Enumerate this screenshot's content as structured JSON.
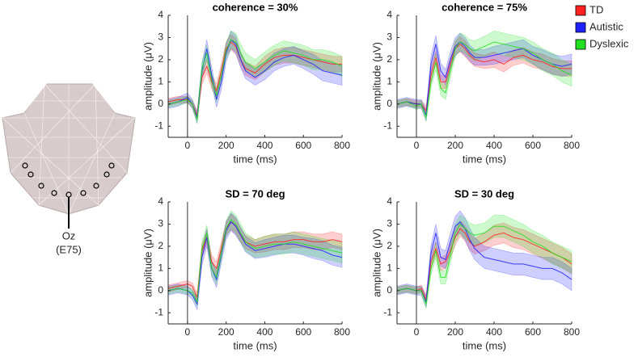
{
  "diagram": {
    "electrode_label": "Oz",
    "electrode_id": "(E75)"
  },
  "chart_data": [
    {
      "type": "line",
      "title": "coherence = 30%",
      "xlabel": "time (ms)",
      "ylabel": "amplitude (μV)",
      "xlim": [
        -100,
        800
      ],
      "ylim": [
        -1.5,
        4
      ],
      "xticks": [
        0,
        200,
        400,
        600,
        800
      ],
      "yticks": [
        -1,
        0,
        1,
        2,
        3,
        4
      ],
      "vline": 0,
      "x": [
        -100,
        -50,
        0,
        25,
        50,
        75,
        100,
        125,
        150,
        175,
        200,
        225,
        250,
        275,
        300,
        350,
        400,
        450,
        500,
        550,
        600,
        650,
        700,
        750,
        800
      ],
      "series": [
        {
          "name": "TD",
          "color": "#ff2020",
          "values": [
            0.1,
            0.2,
            0.2,
            0,
            -0.5,
            1.2,
            1.7,
            1.0,
            0.6,
            1.5,
            2.5,
            2.8,
            2.6,
            2.0,
            1.6,
            1.4,
            1.8,
            2.1,
            2.2,
            2.2,
            2.1,
            2.0,
            1.9,
            1.8,
            1.8
          ],
          "errors": [
            0.15,
            0.15,
            0.15,
            0.15,
            0.2,
            0.3,
            0.3,
            0.3,
            0.3,
            0.3,
            0.3,
            0.35,
            0.35,
            0.3,
            0.3,
            0.3,
            0.35,
            0.35,
            0.35,
            0.35,
            0.35,
            0.35,
            0.35,
            0.35,
            0.35
          ]
        },
        {
          "name": "Autistic",
          "color": "#2020ff",
          "values": [
            0,
            0.1,
            0.3,
            0,
            -0.6,
            1.5,
            2.5,
            1.3,
            0.2,
            1.0,
            2.3,
            2.9,
            2.7,
            2.0,
            1.5,
            1.2,
            1.5,
            1.9,
            2.1,
            2.2,
            2.0,
            1.8,
            1.5,
            1.4,
            1.3
          ],
          "errors": [
            0.2,
            0.2,
            0.2,
            0.2,
            0.25,
            0.35,
            0.4,
            0.35,
            0.35,
            0.35,
            0.4,
            0.4,
            0.4,
            0.35,
            0.35,
            0.35,
            0.4,
            0.4,
            0.4,
            0.4,
            0.4,
            0.45,
            0.45,
            0.45,
            0.45
          ]
        },
        {
          "name": "Dyslexic",
          "color": "#20e020",
          "values": [
            0,
            0.1,
            0.2,
            0,
            -0.7,
            1.6,
            2.3,
            1.1,
            0.4,
            1.3,
            2.4,
            2.9,
            2.8,
            2.3,
            1.9,
            1.6,
            1.9,
            2.2,
            2.4,
            2.3,
            2.2,
            2.0,
            2.0,
            1.9,
            1.7
          ],
          "errors": [
            0.15,
            0.15,
            0.15,
            0.15,
            0.2,
            0.3,
            0.35,
            0.3,
            0.3,
            0.3,
            0.35,
            0.4,
            0.4,
            0.4,
            0.4,
            0.4,
            0.45,
            0.45,
            0.45,
            0.45,
            0.45,
            0.45,
            0.45,
            0.45,
            0.45
          ]
        }
      ]
    },
    {
      "type": "line",
      "title": "coherence = 75%",
      "xlabel": "time (ms)",
      "ylabel": "amplitude (μV)",
      "legend": "outside right",
      "xlim": [
        -100,
        800
      ],
      "ylim": [
        -1.5,
        4
      ],
      "xticks": [
        0,
        200,
        400,
        600,
        800
      ],
      "yticks": [
        -1,
        0,
        1,
        2,
        3,
        4
      ],
      "vline": 0,
      "x": [
        -100,
        -50,
        0,
        25,
        50,
        75,
        100,
        125,
        150,
        175,
        200,
        225,
        250,
        275,
        300,
        350,
        400,
        450,
        500,
        550,
        600,
        650,
        700,
        750,
        800
      ],
      "series": [
        {
          "name": "TD",
          "color": "#ff2020",
          "values": [
            0,
            0.1,
            0,
            0,
            -0.3,
            1.3,
            2.1,
            1.0,
            1.0,
            1.8,
            2.5,
            2.7,
            2.5,
            2.2,
            2.0,
            1.9,
            2.0,
            1.8,
            2.1,
            2.2,
            2.0,
            1.9,
            1.7,
            1.6,
            1.6
          ],
          "errors": [
            0.15,
            0.15,
            0.15,
            0.15,
            0.2,
            0.3,
            0.3,
            0.3,
            0.3,
            0.3,
            0.3,
            0.35,
            0.35,
            0.3,
            0.3,
            0.3,
            0.35,
            0.35,
            0.35,
            0.35,
            0.35,
            0.35,
            0.35,
            0.35,
            0.35
          ]
        },
        {
          "name": "Autistic",
          "color": "#2020ff",
          "values": [
            0,
            0.1,
            0,
            0,
            -0.5,
            1.8,
            2.7,
            1.5,
            1.2,
            2.0,
            2.6,
            2.8,
            2.6,
            2.3,
            2.1,
            2.1,
            2.2,
            2.3,
            2.4,
            2.5,
            2.2,
            2.0,
            1.8,
            1.7,
            1.8
          ],
          "errors": [
            0.2,
            0.2,
            0.2,
            0.2,
            0.25,
            0.35,
            0.4,
            0.35,
            0.35,
            0.35,
            0.4,
            0.4,
            0.4,
            0.35,
            0.35,
            0.35,
            0.4,
            0.4,
            0.4,
            0.4,
            0.4,
            0.45,
            0.45,
            0.45,
            0.45
          ]
        },
        {
          "name": "Dyslexic",
          "color": "#20e020",
          "values": [
            0,
            0.1,
            -0.1,
            0,
            -0.6,
            1.0,
            1.9,
            0.7,
            0.5,
            1.5,
            2.5,
            2.8,
            2.7,
            2.5,
            2.4,
            2.6,
            2.8,
            2.7,
            2.6,
            2.5,
            2.3,
            2.0,
            1.8,
            1.5,
            1.3
          ],
          "errors": [
            0.15,
            0.15,
            0.15,
            0.15,
            0.2,
            0.3,
            0.35,
            0.3,
            0.3,
            0.3,
            0.35,
            0.4,
            0.4,
            0.4,
            0.45,
            0.45,
            0.5,
            0.5,
            0.5,
            0.5,
            0.5,
            0.5,
            0.5,
            0.5,
            0.5
          ]
        }
      ]
    },
    {
      "type": "line",
      "title": "SD = 70 deg",
      "xlabel": "time (ms)",
      "ylabel": "amplitude (μV)",
      "xlim": [
        -100,
        800
      ],
      "ylim": [
        -1.5,
        4
      ],
      "xticks": [
        0,
        200,
        400,
        600,
        800
      ],
      "yticks": [
        -1,
        0,
        1,
        2,
        3,
        4
      ],
      "vline": 0,
      "x": [
        -100,
        -50,
        0,
        25,
        50,
        75,
        100,
        125,
        150,
        175,
        200,
        225,
        250,
        275,
        300,
        350,
        400,
        450,
        500,
        550,
        600,
        650,
        700,
        750,
        800
      ],
      "series": [
        {
          "name": "TD",
          "color": "#ff2020",
          "values": [
            0.1,
            0.2,
            0.3,
            0.2,
            -0.3,
            1.8,
            2.4,
            1.3,
            1.0,
            1.9,
            2.8,
            3.1,
            2.9,
            2.5,
            2.2,
            2.0,
            2.1,
            2.2,
            2.2,
            2.3,
            2.3,
            2.2,
            2.2,
            2.3,
            2.2
          ],
          "errors": [
            0.15,
            0.15,
            0.15,
            0.15,
            0.2,
            0.3,
            0.3,
            0.3,
            0.3,
            0.3,
            0.3,
            0.35,
            0.35,
            0.3,
            0.3,
            0.3,
            0.35,
            0.35,
            0.35,
            0.35,
            0.35,
            0.35,
            0.35,
            0.35,
            0.35
          ]
        },
        {
          "name": "Autistic",
          "color": "#2020ff",
          "values": [
            0,
            0.1,
            0,
            -0.2,
            -0.6,
            1.5,
            2.4,
            1.0,
            0.5,
            1.6,
            2.7,
            3.1,
            2.9,
            2.5,
            2.1,
            1.8,
            1.9,
            2.0,
            2.1,
            2.1,
            2.0,
            1.9,
            1.8,
            1.6,
            1.5
          ],
          "errors": [
            0.2,
            0.2,
            0.2,
            0.2,
            0.25,
            0.35,
            0.4,
            0.35,
            0.35,
            0.35,
            0.4,
            0.4,
            0.4,
            0.35,
            0.35,
            0.35,
            0.4,
            0.4,
            0.4,
            0.4,
            0.4,
            0.45,
            0.45,
            0.45,
            0.45
          ]
        },
        {
          "name": "Dyslexic",
          "color": "#20e020",
          "values": [
            0,
            0.1,
            0,
            -0.1,
            -0.5,
            1.9,
            2.6,
            1.0,
            0.6,
            1.7,
            2.8,
            3.2,
            3.0,
            2.6,
            2.2,
            1.9,
            2.0,
            2.1,
            2.1,
            2.2,
            2.1,
            2.0,
            1.9,
            1.8,
            1.7
          ],
          "errors": [
            0.15,
            0.15,
            0.15,
            0.15,
            0.2,
            0.3,
            0.35,
            0.3,
            0.3,
            0.3,
            0.35,
            0.4,
            0.4,
            0.4,
            0.4,
            0.4,
            0.45,
            0.45,
            0.45,
            0.45,
            0.45,
            0.45,
            0.45,
            0.45,
            0.45
          ]
        }
      ]
    },
    {
      "type": "line",
      "title": "SD = 30 deg",
      "xlabel": "time (ms)",
      "ylabel": "amplitude (μV)",
      "xlim": [
        -100,
        800
      ],
      "ylim": [
        -1.5,
        4
      ],
      "xticks": [
        0,
        200,
        400,
        600,
        800
      ],
      "yticks": [
        -1,
        0,
        1,
        2,
        3,
        4
      ],
      "vline": 0,
      "x": [
        -100,
        -50,
        0,
        25,
        50,
        75,
        100,
        125,
        150,
        175,
        200,
        225,
        250,
        275,
        300,
        350,
        400,
        450,
        500,
        550,
        600,
        650,
        700,
        750,
        800
      ],
      "series": [
        {
          "name": "TD",
          "color": "#ff2020",
          "values": [
            0,
            0.1,
            0,
            0.1,
            -0.4,
            1.3,
            1.9,
            1.2,
            1.3,
            1.8,
            2.4,
            2.8,
            2.6,
            2.2,
            2.0,
            2.2,
            2.5,
            2.6,
            2.4,
            2.3,
            2.1,
            1.9,
            1.7,
            1.5,
            1.2
          ],
          "errors": [
            0.15,
            0.15,
            0.15,
            0.15,
            0.2,
            0.3,
            0.3,
            0.3,
            0.3,
            0.3,
            0.35,
            0.35,
            0.35,
            0.35,
            0.35,
            0.4,
            0.45,
            0.45,
            0.45,
            0.45,
            0.45,
            0.45,
            0.45,
            0.45,
            0.45
          ]
        },
        {
          "name": "Autistic",
          "color": "#2020ff",
          "values": [
            0,
            0.1,
            0,
            0,
            -0.5,
            1.7,
            2.6,
            1.5,
            1.4,
            2.2,
            2.9,
            3.1,
            2.8,
            2.3,
            1.9,
            1.5,
            1.4,
            1.3,
            1.2,
            1.2,
            1.1,
            1.0,
            1.0,
            0.8,
            0.5
          ],
          "errors": [
            0.2,
            0.2,
            0.2,
            0.2,
            0.25,
            0.35,
            0.4,
            0.4,
            0.4,
            0.4,
            0.45,
            0.5,
            0.5,
            0.5,
            0.5,
            0.5,
            0.5,
            0.5,
            0.5,
            0.5,
            0.5,
            0.5,
            0.5,
            0.5,
            0.5
          ]
        },
        {
          "name": "Dyslexic",
          "color": "#20e020",
          "values": [
            0,
            0.1,
            0,
            0,
            -0.6,
            1.0,
            1.8,
            0.6,
            0.6,
            1.6,
            2.6,
            3.0,
            2.8,
            2.6,
            2.5,
            2.6,
            2.9,
            2.9,
            2.7,
            2.5,
            2.2,
            2.0,
            1.7,
            1.5,
            1.3
          ],
          "errors": [
            0.15,
            0.15,
            0.15,
            0.15,
            0.2,
            0.3,
            0.35,
            0.3,
            0.3,
            0.35,
            0.4,
            0.4,
            0.45,
            0.45,
            0.45,
            0.45,
            0.5,
            0.5,
            0.5,
            0.5,
            0.5,
            0.5,
            0.5,
            0.5,
            0.5
          ]
        }
      ]
    }
  ]
}
